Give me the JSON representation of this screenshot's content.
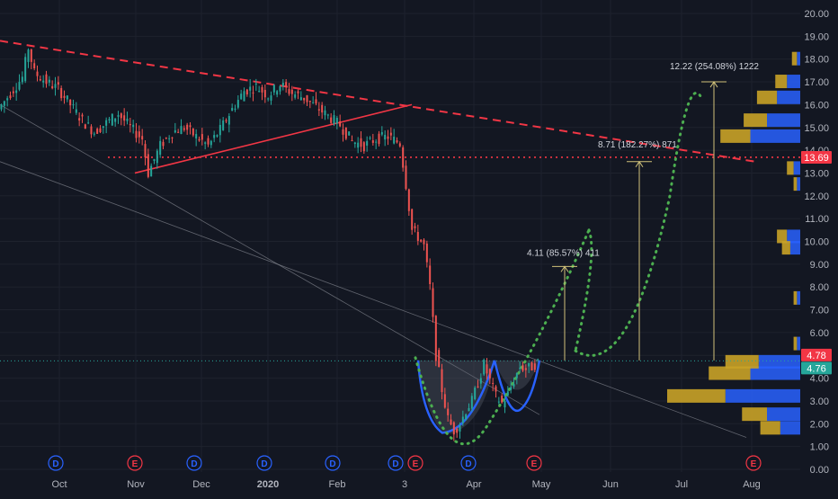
{
  "chart_data": {
    "type": "candlestick",
    "symbol": "",
    "price_axis": {
      "ticks": [
        "20.00",
        "19.00",
        "18.00",
        "17.00",
        "16.00",
        "15.00",
        "14.00",
        "13.00",
        "12.00",
        "11.00",
        "10.00",
        "9.00",
        "8.00",
        "7.00",
        "6.00",
        "5.00",
        "4.00",
        "3.00",
        "2.00",
        "1.00",
        "0.00"
      ],
      "range": [
        0,
        20.5
      ]
    },
    "time_axis": {
      "ticks": [
        {
          "label": "Oct",
          "bold": false
        },
        {
          "label": "Nov",
          "bold": false
        },
        {
          "label": "Dec",
          "bold": false
        },
        {
          "label": "2020",
          "bold": true
        },
        {
          "label": "Feb",
          "bold": false
        },
        {
          "label": "3",
          "bold": false
        },
        {
          "label": "Apr",
          "bold": false
        },
        {
          "label": "May",
          "bold": false
        },
        {
          "label": "Jun",
          "bold": false
        },
        {
          "label": "Jul",
          "bold": false
        },
        {
          "label": "Aug",
          "bold": false
        }
      ]
    },
    "price_labels": [
      {
        "value": "13.69",
        "color": "#f23645",
        "price": 13.69
      },
      {
        "value": "4.78",
        "color": "#f23645",
        "price": 4.78
      },
      {
        "value": "4.76",
        "color": "#26a69a",
        "price": 4.76
      }
    ],
    "annotations": [
      {
        "text": "12.22 (254.08%) 1222",
        "target_price": 17.0
      },
      {
        "text": "8.71 (182.27%) 871",
        "target_price": 13.5
      },
      {
        "text": "4.11 (85.57%) 411",
        "target_price": 8.9
      }
    ],
    "event_markers": [
      {
        "label": "D",
        "kind": "dividend"
      },
      {
        "label": "E",
        "kind": "earnings"
      },
      {
        "label": "D",
        "kind": "dividend"
      },
      {
        "label": "D",
        "kind": "dividend"
      },
      {
        "label": "D",
        "kind": "dividend"
      },
      {
        "label": "D",
        "kind": "dividend"
      },
      {
        "label": "E",
        "kind": "earnings"
      },
      {
        "label": "D",
        "kind": "dividend"
      },
      {
        "label": "E",
        "kind": "earnings"
      },
      {
        "label": "E",
        "kind": "earnings"
      }
    ],
    "price_series": [
      [
        0,
        15.8
      ],
      [
        0.02,
        16.5
      ],
      [
        0.04,
        17.2
      ],
      [
        0.05,
        18.5
      ],
      [
        0.06,
        17.4
      ],
      [
        0.08,
        17.0
      ],
      [
        0.1,
        16.7
      ],
      [
        0.12,
        16.0
      ],
      [
        0.14,
        15.3
      ],
      [
        0.16,
        14.8
      ],
      [
        0.18,
        15.2
      ],
      [
        0.2,
        15.6
      ],
      [
        0.22,
        15.0
      ],
      [
        0.24,
        14.5
      ],
      [
        0.25,
        13.0
      ],
      [
        0.27,
        14.2
      ],
      [
        0.29,
        14.8
      ],
      [
        0.31,
        15.0
      ],
      [
        0.33,
        14.6
      ],
      [
        0.35,
        14.2
      ],
      [
        0.37,
        14.9
      ],
      [
        0.39,
        15.8
      ],
      [
        0.41,
        16.6
      ],
      [
        0.43,
        16.8
      ],
      [
        0.45,
        16.4
      ],
      [
        0.47,
        16.9
      ],
      [
        0.49,
        16.5
      ],
      [
        0.51,
        16.3
      ],
      [
        0.53,
        15.9
      ],
      [
        0.55,
        15.5
      ],
      [
        0.57,
        15.1
      ],
      [
        0.59,
        14.4
      ],
      [
        0.61,
        14.2
      ],
      [
        0.63,
        14.5
      ],
      [
        0.65,
        14.6
      ],
      [
        0.67,
        14.3
      ],
      [
        0.68,
        12.5
      ],
      [
        0.69,
        10.5
      ],
      [
        0.7,
        10.2
      ],
      [
        0.71,
        9.8
      ],
      [
        0.72,
        8.0
      ],
      [
        0.73,
        5.0
      ],
      [
        0.74,
        3.5
      ],
      [
        0.75,
        2.2
      ],
      [
        0.76,
        1.7
      ],
      [
        0.77,
        2.0
      ],
      [
        0.78,
        2.6
      ],
      [
        0.79,
        3.0
      ],
      [
        0.8,
        3.8
      ],
      [
        0.81,
        4.6
      ],
      [
        0.82,
        3.9
      ],
      [
        0.83,
        3.2
      ],
      [
        0.84,
        2.9
      ],
      [
        0.85,
        3.3
      ],
      [
        0.86,
        3.9
      ],
      [
        0.87,
        4.5
      ],
      [
        0.88,
        4.4
      ],
      [
        0.89,
        4.5
      ],
      [
        0.9,
        4.7
      ]
    ],
    "volume_profile_levels": [
      {
        "price": 3.2,
        "up": 0.45,
        "down": 0.35
      },
      {
        "price": 4.2,
        "up": 0.3,
        "down": 0.25
      },
      {
        "price": 4.7,
        "up": 0.25,
        "down": 0.2
      },
      {
        "price": 2.4,
        "up": 0.2,
        "down": 0.15
      },
      {
        "price": 1.8,
        "up": 0.12,
        "down": 0.12
      },
      {
        "price": 10.2,
        "up": 0.08,
        "down": 0.06
      },
      {
        "price": 9.7,
        "up": 0.06,
        "down": 0.05
      },
      {
        "price": 14.6,
        "up": 0.3,
        "down": 0.18
      },
      {
        "price": 15.3,
        "up": 0.2,
        "down": 0.14
      },
      {
        "price": 16.3,
        "up": 0.14,
        "down": 0.12
      },
      {
        "price": 17.0,
        "up": 0.08,
        "down": 0.07
      },
      {
        "price": 13.2,
        "up": 0.04,
        "down": 0.04
      },
      {
        "price": 12.5,
        "up": 0.02,
        "down": 0.02
      },
      {
        "price": 7.5,
        "up": 0.02,
        "down": 0.02
      },
      {
        "price": 5.5,
        "up": 0.02,
        "down": 0.02
      },
      {
        "price": 18.0,
        "up": 0.02,
        "down": 0.03
      }
    ],
    "colors": {
      "background": "#131722",
      "grid": "#1e222d",
      "up": "#26a69a",
      "down": "#ef5350",
      "trend": "#f23645",
      "cup": "#2962ff",
      "projection": "#4caf50",
      "volume_up": "#2962ff",
      "volume_down": "#c9a227"
    }
  }
}
